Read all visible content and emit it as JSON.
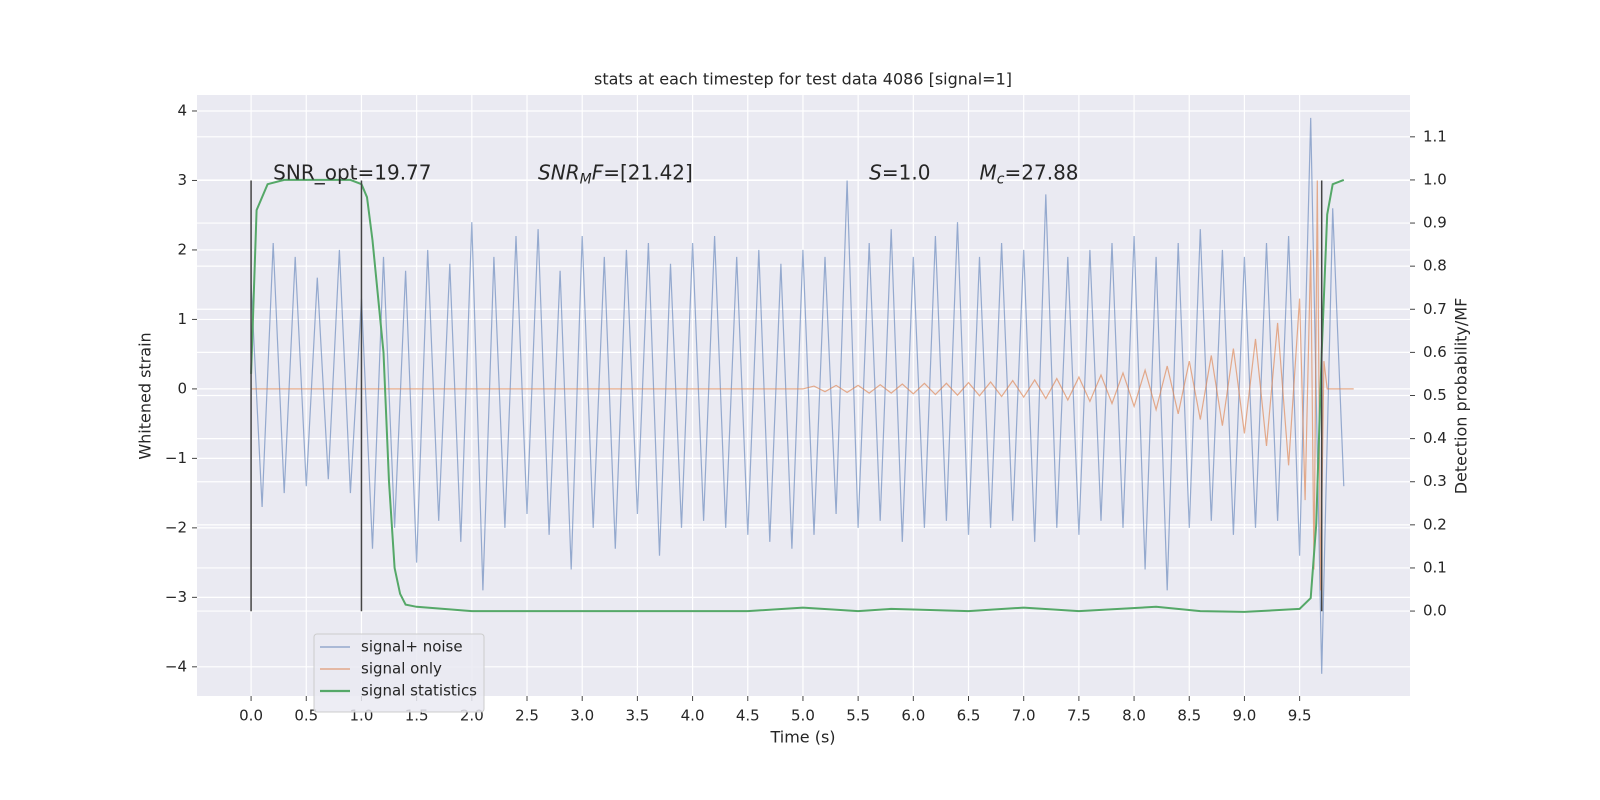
{
  "chart_data": {
    "type": "line",
    "title": "stats at each timestep for test data 4086 [signal=1]",
    "xlabel": "Time (s)",
    "ylabel": "Whitened strain",
    "y2label": "Detection probability/MF",
    "xlim": [
      -0.49,
      10.5
    ],
    "ylim": [
      -4.42,
      4.23
    ],
    "y2lim": [
      -0.197,
      1.197
    ],
    "xticks": [
      {
        "value": 0,
        "label": "0.0"
      },
      0.5,
      {
        "value": 1,
        "label": "1.0"
      },
      1.5,
      {
        "value": 2,
        "label": "2.0"
      },
      2.5,
      {
        "value": 3,
        "label": "3.0"
      },
      3.5,
      {
        "value": 4,
        "label": "4.0"
      },
      4.5,
      {
        "value": 5,
        "label": "5.0"
      },
      5.5,
      {
        "value": 6,
        "label": "6.0"
      },
      6.5,
      {
        "value": 7,
        "label": "7.0"
      },
      7.5,
      {
        "value": 8,
        "label": "8.0"
      },
      8.5,
      {
        "value": 9,
        "label": "9.0"
      },
      9.5
    ],
    "yticks": [
      {
        "value": -4,
        "label": "−4"
      },
      {
        "value": -3,
        "label": "−3"
      },
      {
        "value": -2,
        "label": "−2"
      },
      {
        "value": -1,
        "label": "−1"
      },
      0,
      1,
      2,
      3,
      4
    ],
    "y2ticks": [
      {
        "value": 0,
        "label": "0.0"
      },
      0.1,
      0.2,
      0.3,
      0.4,
      0.5,
      0.6,
      0.7,
      0.8,
      0.9,
      {
        "value": 1,
        "label": "1.0"
      },
      1.1
    ],
    "grid": true,
    "legend": "lower left",
    "series": [
      {
        "name": "signal+ noise",
        "color": "#4c72b0",
        "axis": "y",
        "x": [
          0.0,
          0.1,
          0.2,
          0.3,
          0.4,
          0.5,
          0.6,
          0.7,
          0.8,
          0.9,
          1.0,
          1.1,
          1.2,
          1.3,
          1.4,
          1.5,
          1.6,
          1.7,
          1.8,
          1.9,
          2.0,
          2.1,
          2.2,
          2.3,
          2.4,
          2.5,
          2.6,
          2.7,
          2.8,
          2.9,
          3.0,
          3.1,
          3.2,
          3.3,
          3.4,
          3.5,
          3.6,
          3.7,
          3.8,
          3.9,
          4.0,
          4.1,
          4.2,
          4.3,
          4.4,
          4.5,
          4.6,
          4.7,
          4.8,
          4.9,
          5.0,
          5.1,
          5.2,
          5.3,
          5.4,
          5.5,
          5.6,
          5.7,
          5.8,
          5.9,
          6.0,
          6.1,
          6.2,
          6.3,
          6.4,
          6.5,
          6.6,
          6.7,
          6.8,
          6.9,
          7.0,
          7.1,
          7.2,
          7.3,
          7.4,
          7.5,
          7.6,
          7.7,
          7.8,
          7.9,
          8.0,
          8.1,
          8.2,
          8.3,
          8.4,
          8.5,
          8.6,
          8.7,
          8.8,
          8.9,
          9.0,
          9.1,
          9.2,
          9.3,
          9.4,
          9.5,
          9.6,
          9.7,
          9.8,
          9.9
        ],
        "values": [
          1.5,
          -1.7,
          2.1,
          -1.5,
          1.9,
          -1.4,
          1.6,
          -1.3,
          2.0,
          -1.5,
          1.3,
          -2.3,
          1.9,
          -2.0,
          1.7,
          -2.5,
          2.0,
          -1.9,
          1.8,
          -2.2,
          2.4,
          -2.9,
          1.9,
          -2.0,
          2.2,
          -1.8,
          2.3,
          -2.1,
          1.7,
          -2.6,
          2.2,
          -2.0,
          1.9,
          -2.3,
          2.0,
          -1.8,
          2.1,
          -2.4,
          1.8,
          -2.0,
          2.1,
          -1.9,
          2.2,
          -2.0,
          1.9,
          -2.1,
          2.0,
          -2.2,
          1.8,
          -2.3,
          2.0,
          -2.1,
          1.9,
          -1.8,
          3.0,
          -2.0,
          2.1,
          -1.9,
          2.3,
          -2.2,
          1.9,
          -2.0,
          2.2,
          -1.9,
          2.4,
          -2.1,
          1.9,
          -2.0,
          2.1,
          -1.9,
          2.0,
          -2.2,
          2.8,
          -2.0,
          1.9,
          -2.1,
          2.0,
          -1.9,
          2.1,
          -2.0,
          2.2,
          -2.6,
          1.9,
          -2.9,
          2.1,
          -2.0,
          2.3,
          -1.9,
          2.0,
          -2.1,
          1.9,
          -2.0,
          2.1,
          -1.9,
          2.2,
          -2.4,
          3.9,
          -4.1,
          2.6,
          -1.4
        ]
      },
      {
        "name": "signal only",
        "color": "#dd8452",
        "axis": "y",
        "x": [
          0.0,
          5.0,
          5.1,
          5.2,
          5.3,
          5.4,
          5.5,
          5.6,
          5.7,
          5.8,
          5.9,
          6.0,
          6.1,
          6.2,
          6.3,
          6.4,
          6.5,
          6.6,
          6.7,
          6.8,
          6.9,
          7.0,
          7.1,
          7.2,
          7.3,
          7.4,
          7.5,
          7.6,
          7.7,
          7.8,
          7.9,
          8.0,
          8.1,
          8.2,
          8.3,
          8.4,
          8.5,
          8.6,
          8.7,
          8.8,
          8.9,
          9.0,
          9.1,
          9.2,
          9.3,
          9.4,
          9.5,
          9.55,
          9.6,
          9.63,
          9.66,
          9.69,
          9.72,
          9.75,
          9.99
        ],
        "values": [
          0,
          0,
          0.04,
          -0.04,
          0.05,
          -0.05,
          0.05,
          -0.06,
          0.06,
          -0.06,
          0.07,
          -0.07,
          0.08,
          -0.08,
          0.08,
          -0.09,
          0.09,
          -0.1,
          0.1,
          -0.11,
          0.12,
          -0.12,
          0.13,
          -0.14,
          0.15,
          -0.16,
          0.17,
          -0.18,
          0.2,
          -0.21,
          0.23,
          -0.25,
          0.27,
          -0.3,
          0.33,
          -0.36,
          0.4,
          -0.44,
          0.48,
          -0.53,
          0.58,
          -0.64,
          0.72,
          -0.82,
          0.95,
          -1.1,
          1.3,
          -1.6,
          2.0,
          -2.6,
          3.0,
          -2.9,
          0.4,
          0,
          0
        ]
      },
      {
        "name": "signal statistics",
        "color": "#55a868",
        "axis": "y2",
        "x": [
          0.0,
          0.05,
          0.15,
          0.3,
          0.9,
          1.0,
          1.05,
          1.1,
          1.2,
          1.25,
          1.3,
          1.35,
          1.4,
          1.5,
          2.0,
          3.0,
          4.5,
          5.0,
          5.5,
          5.8,
          6.5,
          7.0,
          7.5,
          8.2,
          8.6,
          9.0,
          9.5,
          9.6,
          9.65,
          9.7,
          9.75,
          9.8,
          9.9
        ],
        "values": [
          0.55,
          0.93,
          0.99,
          1.0,
          1.0,
          0.99,
          0.96,
          0.86,
          0.6,
          0.3,
          0.1,
          0.04,
          0.015,
          0.01,
          0.0,
          0.0,
          0.0,
          0.008,
          0.0,
          0.005,
          0.0,
          0.008,
          0.0,
          0.01,
          0.0,
          -0.002,
          0.005,
          0.03,
          0.2,
          0.6,
          0.92,
          0.99,
          1.0
        ]
      }
    ],
    "markers": [
      {
        "x": 0,
        "ymin": -3.2,
        "ymax": 3.0
      },
      {
        "x": 1.0,
        "ymin": -3.2,
        "ymax": 3.0
      },
      {
        "x": 9.7,
        "ymin": -3.2,
        "ymax": 3.0
      }
    ],
    "annotations": [
      {
        "x": 0.2,
        "y": 3.1,
        "parts": [
          {
            "text": "SNR_opt=19.77"
          }
        ]
      },
      {
        "x": 2.6,
        "y": 3.1,
        "parts": [
          {
            "text": "SNR",
            "italic": true
          },
          {
            "text": "M",
            "italic": true,
            "sub": true
          },
          {
            "text": "F",
            "italic": true
          },
          {
            "text": "=[21.42]"
          }
        ]
      },
      {
        "x": 5.6,
        "y": 3.1,
        "parts": [
          {
            "text": "S",
            "italic": true
          },
          {
            "text": "=1.0"
          }
        ]
      },
      {
        "x": 6.6,
        "y": 3.1,
        "parts": [
          {
            "text": "M",
            "italic": true
          },
          {
            "text": "c",
            "italic": true,
            "sub": true
          },
          {
            "text": "=27.88"
          }
        ]
      }
    ]
  }
}
